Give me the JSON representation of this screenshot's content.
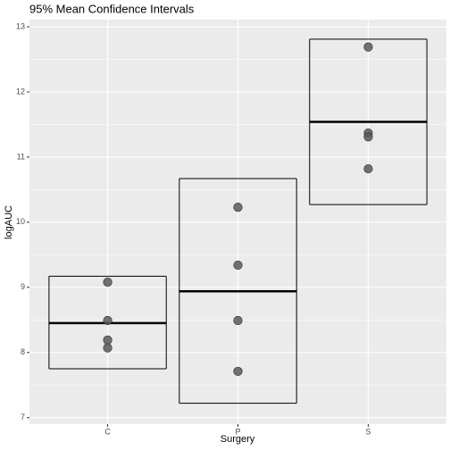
{
  "chart_data": {
    "type": "crossbar",
    "title": "95% Mean Confidence Intervals",
    "x_label": "Surgery",
    "y_label": "logAUC",
    "categories": [
      "C",
      "P",
      "S"
    ],
    "mean": [
      8.45,
      8.94,
      11.54
    ],
    "lower": [
      7.75,
      7.22,
      10.27
    ],
    "upper": [
      9.17,
      10.67,
      12.81
    ],
    "points": [
      [
        9.08,
        8.49,
        8.19,
        8.07
      ],
      [
        10.23,
        9.34,
        8.49,
        7.71
      ],
      [
        12.69,
        11.37,
        11.31,
        10.82
      ]
    ],
    "point_color": "#595959",
    "ylim": [
      6.9,
      13.11
    ],
    "yticks": [
      7,
      8,
      9,
      10,
      11,
      12,
      13
    ],
    "grid": true
  }
}
